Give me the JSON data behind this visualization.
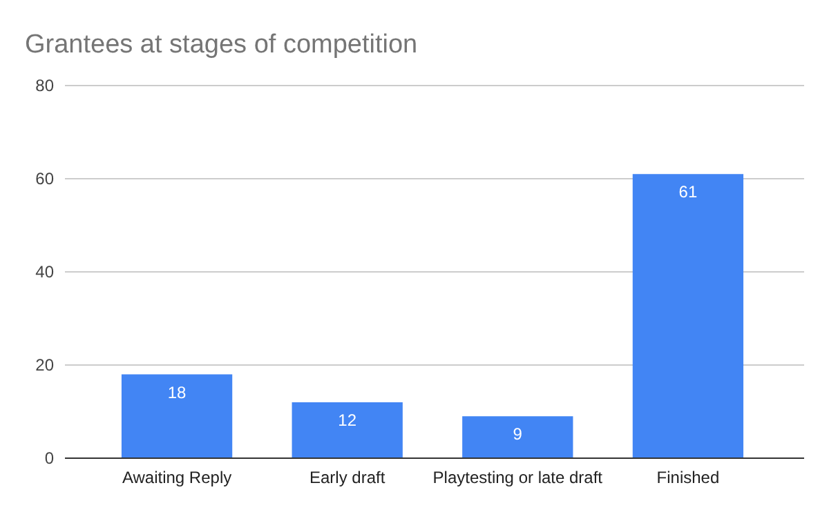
{
  "chart_data": {
    "type": "bar",
    "title": "Grantees at stages of competition",
    "categories": [
      "Awaiting Reply",
      "Early draft",
      "Playtesting or late draft",
      "Finished"
    ],
    "values": [
      18,
      12,
      9,
      61
    ],
    "color": "#4285f4",
    "ylim": [
      0,
      80
    ],
    "yticks": [
      0,
      20,
      40,
      60,
      80
    ],
    "grid": "y",
    "data_labels": true
  }
}
